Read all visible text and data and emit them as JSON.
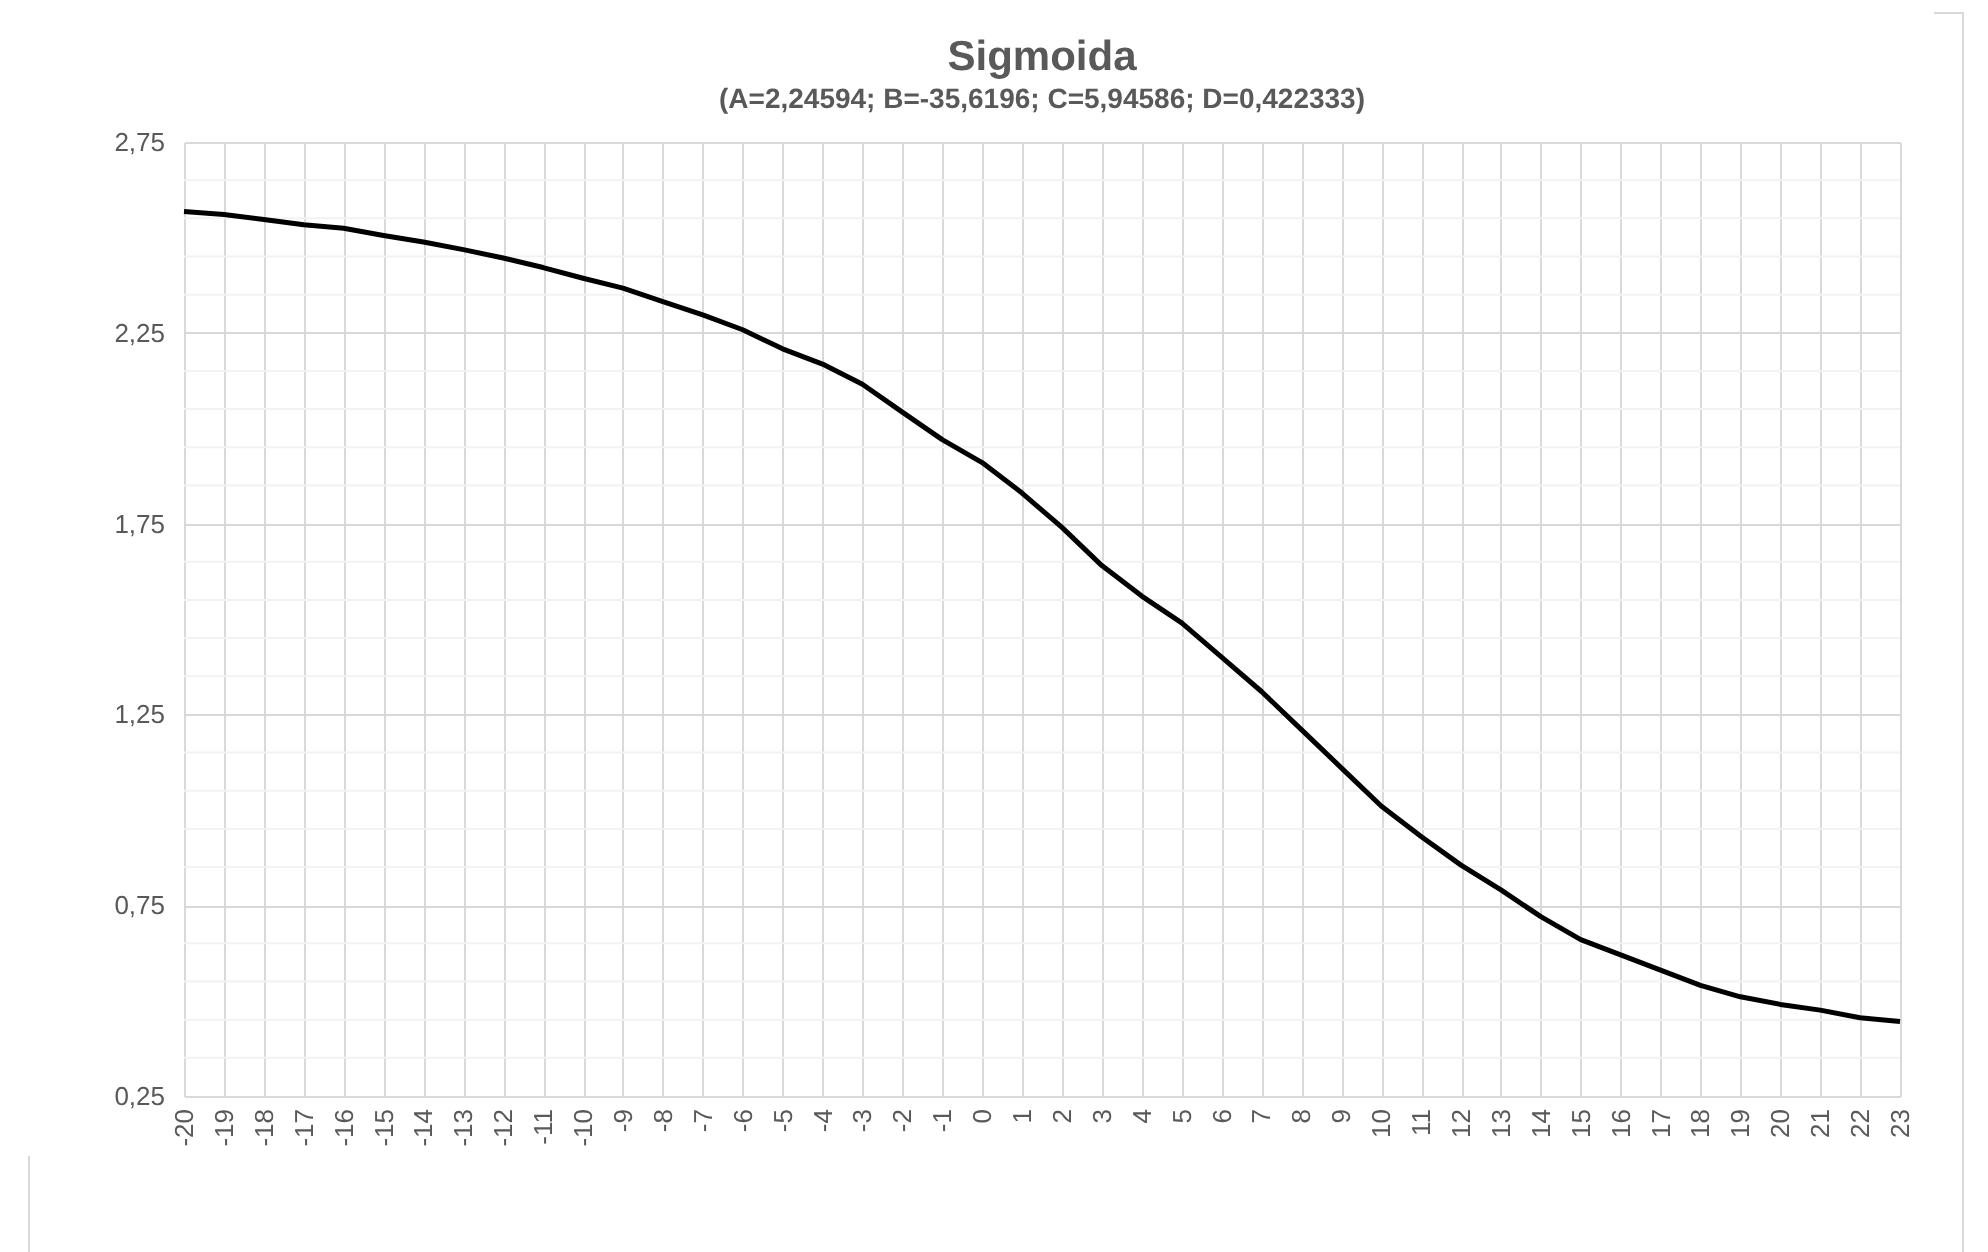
{
  "chart_data": {
    "type": "line",
    "title": "Sigmoida",
    "subtitle": "(A=2,24594; B=-35,6196; C=5,94586; D=0,422333)",
    "categories": [
      "-20",
      "-19",
      "-18",
      "-17",
      "-16",
      "-15",
      "-14",
      "-13",
      "-12",
      "-11",
      "-10",
      "-9",
      "-8",
      "-7",
      "-6",
      "-5",
      "-4",
      "-3",
      "-2",
      "-1",
      "0",
      "1",
      "2",
      "3",
      "4",
      "5",
      "6",
      "7",
      "8",
      "9",
      "10",
      "11",
      "12",
      "13",
      "14",
      "15",
      "16",
      "17",
      "18",
      "19",
      "20",
      "21",
      "22",
      "23"
    ],
    "series": [
      {
        "color": "#000000",
        "values": [
          2.568,
          2.56,
          2.547,
          2.533,
          2.524,
          2.505,
          2.488,
          2.468,
          2.446,
          2.421,
          2.393,
          2.367,
          2.332,
          2.297,
          2.258,
          2.208,
          2.168,
          2.115,
          2.042,
          1.97,
          1.91,
          1.83,
          1.74,
          1.64,
          1.56,
          1.49,
          1.4,
          1.31,
          1.21,
          1.11,
          1.01,
          0.93,
          0.855,
          0.79,
          0.72,
          0.66,
          0.62,
          0.58,
          0.54,
          0.51,
          0.49,
          0.475,
          0.455,
          0.445
        ]
      }
    ],
    "ylim": [
      0.25,
      2.75
    ],
    "yticks": [
      {
        "value": 0.25,
        "label": "0,25"
      },
      {
        "value": 0.75,
        "label": "0,75"
      },
      {
        "value": 1.25,
        "label": "1,25"
      },
      {
        "value": 1.75,
        "label": "1,75"
      },
      {
        "value": 2.25,
        "label": "2,25"
      },
      {
        "value": 2.75,
        "label": "2,75"
      }
    ],
    "grid": true,
    "marker": "none",
    "line_style": "solid"
  }
}
